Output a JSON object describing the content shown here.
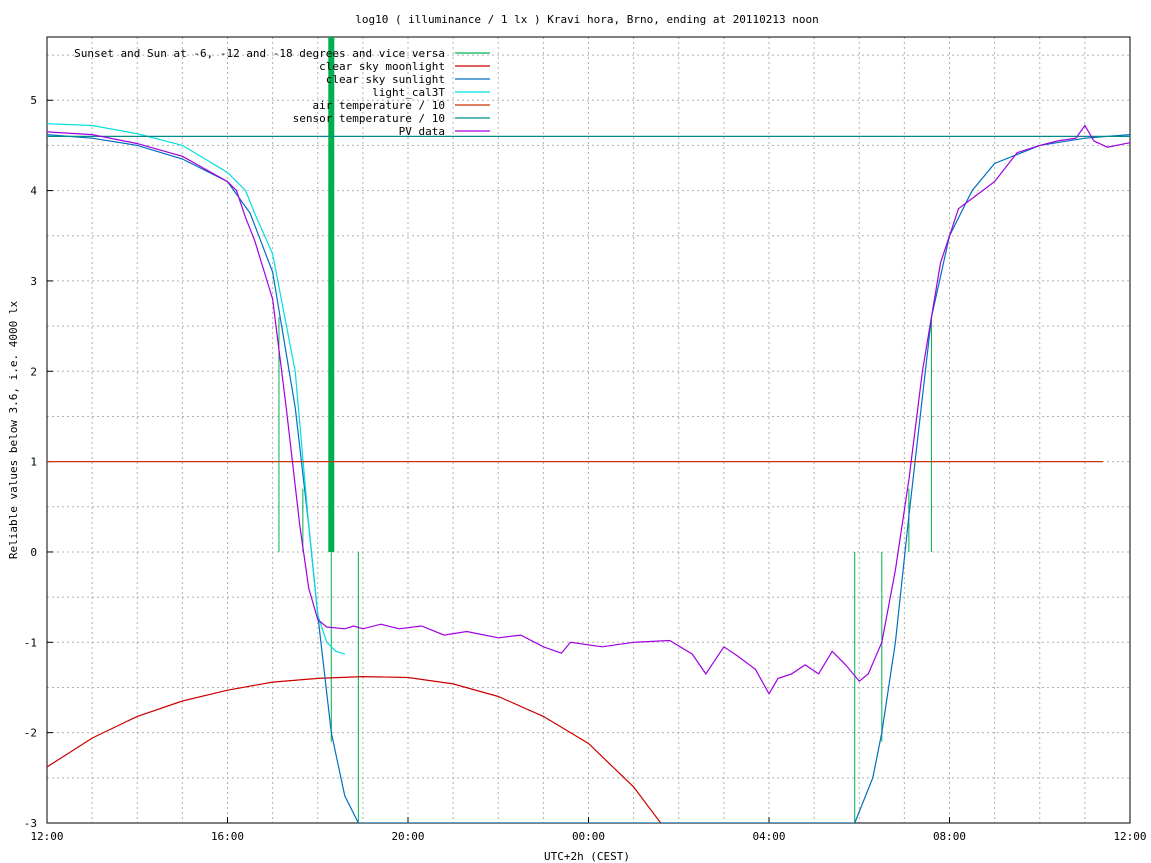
{
  "chart_data": {
    "type": "line",
    "title": "log10 ( illuminance / 1 lx ) Kravi hora, Brno, ending at 20110213 noon",
    "xlabel": "UTC+2h (CEST)",
    "ylabel": "Reliable values below 3.6, i.e. 4000 lx",
    "xlim": [
      0,
      24
    ],
    "ylim": [
      -3,
      5.7
    ],
    "x_ticks": [
      {
        "x": 0,
        "label": "12:00"
      },
      {
        "x": 4,
        "label": "16:00"
      },
      {
        "x": 8,
        "label": "20:00"
      },
      {
        "x": 12,
        "label": "00:00"
      },
      {
        "x": 16,
        "label": "04:00"
      },
      {
        "x": 20,
        "label": "08:00"
      },
      {
        "x": 24,
        "label": "12:00"
      }
    ],
    "y_ticks": [
      {
        "y": 5,
        "label": "5"
      },
      {
        "y": 4,
        "label": "4"
      },
      {
        "y": 3,
        "label": "3"
      },
      {
        "y": 2,
        "label": "2"
      },
      {
        "y": 1,
        "label": "1"
      },
      {
        "y": 0,
        "label": "0"
      },
      {
        "y": -1,
        "label": "-1"
      },
      {
        "y": -2,
        "label": "-2"
      },
      {
        "y": -3,
        "label": "-3"
      }
    ],
    "grid": true,
    "legend_position": "top-left",
    "series": [
      {
        "name": "Sunset and Sun at -6, -12 and -18 degrees and vice versa",
        "color": "#00b050",
        "style": "markers",
        "markers": [
          {
            "x": 5.14,
            "y0": 0,
            "y1": 2.6
          },
          {
            "x": 5.67,
            "y0": 0,
            "y1": 0.7
          },
          {
            "x": 6.3,
            "y0": 0,
            "y1": -2.1
          },
          {
            "x": 6.9,
            "y0": 0,
            "y1": -3
          },
          {
            "x": 17.9,
            "y0": 0,
            "y1": -3
          },
          {
            "x": 18.5,
            "y0": 0,
            "y1": -2.1
          },
          {
            "x": 19.1,
            "y0": 0,
            "y1": 0.7
          },
          {
            "x": 19.6,
            "y0": 0,
            "y1": 2.6
          }
        ],
        "thick_bar": {
          "x": 6.3,
          "y0": 0,
          "y1": 5.7
        }
      },
      {
        "name": "clear sky moonlight",
        "color": "#cc0000",
        "x": [
          0,
          1,
          2,
          3,
          4,
          5,
          6,
          7,
          8,
          9,
          10,
          11,
          12,
          13,
          13.6
        ],
        "y": [
          -2.38,
          -2.06,
          -1.82,
          -1.65,
          -1.53,
          -1.44,
          -1.4,
          -1.38,
          -1.39,
          -1.46,
          -1.6,
          -1.82,
          -2.12,
          -2.6,
          -3
        ]
      },
      {
        "name": "clear sky sunlight",
        "color": "#0070c0",
        "x": [
          0,
          1,
          2,
          3,
          4,
          4.5,
          5,
          5.5,
          5.8,
          6.0,
          6.3,
          6.6,
          6.9,
          17.9,
          18.3,
          18.5,
          18.8,
          19.1,
          19.6,
          20,
          20.5,
          21,
          22,
          23,
          24
        ],
        "y": [
          4.62,
          4.58,
          4.5,
          4.35,
          4.1,
          3.75,
          3.1,
          1.6,
          0.3,
          -0.7,
          -2.0,
          -2.7,
          -3.0,
          -3.0,
          -2.5,
          -2.0,
          -1.0,
          0.4,
          2.6,
          3.5,
          4.0,
          4.3,
          4.5,
          4.58,
          4.62
        ]
      },
      {
        "name": "light_cal3T",
        "color": "#00dede",
        "x": [
          0,
          1,
          2,
          3,
          4,
          4.4,
          4.6,
          5,
          5.5,
          5.8,
          6.0,
          6.2,
          6.4,
          6.6
        ],
        "y": [
          4.74,
          4.72,
          4.63,
          4.5,
          4.2,
          4.0,
          3.75,
          3.3,
          2.0,
          0.3,
          -0.7,
          -1.0,
          -1.1,
          -1.13
        ]
      },
      {
        "name": "air temperature / 10",
        "color": "#cc3300",
        "x": [
          0,
          23.4
        ],
        "y": [
          1.0,
          1.0
        ]
      },
      {
        "name": "sensor temperature / 10",
        "color": "#008b8b",
        "x": [
          0,
          24
        ],
        "y": [
          4.6,
          4.6
        ]
      },
      {
        "name": "PV data",
        "color": "#a000e0",
        "x": [
          0,
          1,
          2,
          3,
          4,
          4.2,
          4.3,
          4.4,
          4.6,
          5.0,
          5.3,
          5.6,
          5.8,
          6.0,
          6.2,
          6.6,
          6.8,
          7.0,
          7.4,
          7.8,
          8.3,
          8.8,
          9.3,
          10,
          10.5,
          11,
          11.4,
          11.6,
          12.3,
          13,
          13.8,
          14.3,
          14.6,
          15,
          15.3,
          15.7,
          16.0,
          16.2,
          16.5,
          16.8,
          17.1,
          17.4,
          17.7,
          18.0,
          18.2,
          18.5,
          18.8,
          19.1,
          19.4,
          19.8,
          20.2,
          20.6,
          21,
          21.5,
          22,
          22.4,
          22.8,
          23.0,
          23.2,
          23.5,
          24
        ],
        "y": [
          4.65,
          4.62,
          4.52,
          4.38,
          4.1,
          4.0,
          3.85,
          3.7,
          3.45,
          2.8,
          1.6,
          0.3,
          -0.4,
          -0.75,
          -0.83,
          -0.85,
          -0.82,
          -0.85,
          -0.8,
          -0.85,
          -0.82,
          -0.92,
          -0.88,
          -0.95,
          -0.92,
          -1.05,
          -1.12,
          -1.0,
          -1.05,
          -1.0,
          -0.98,
          -1.13,
          -1.35,
          -1.05,
          -1.15,
          -1.3,
          -1.57,
          -1.4,
          -1.35,
          -1.25,
          -1.35,
          -1.1,
          -1.25,
          -1.43,
          -1.35,
          -1.0,
          -0.2,
          0.8,
          2.0,
          3.2,
          3.8,
          3.95,
          4.1,
          4.42,
          4.5,
          4.55,
          4.58,
          4.72,
          4.55,
          4.48,
          4.53
        ]
      }
    ]
  }
}
